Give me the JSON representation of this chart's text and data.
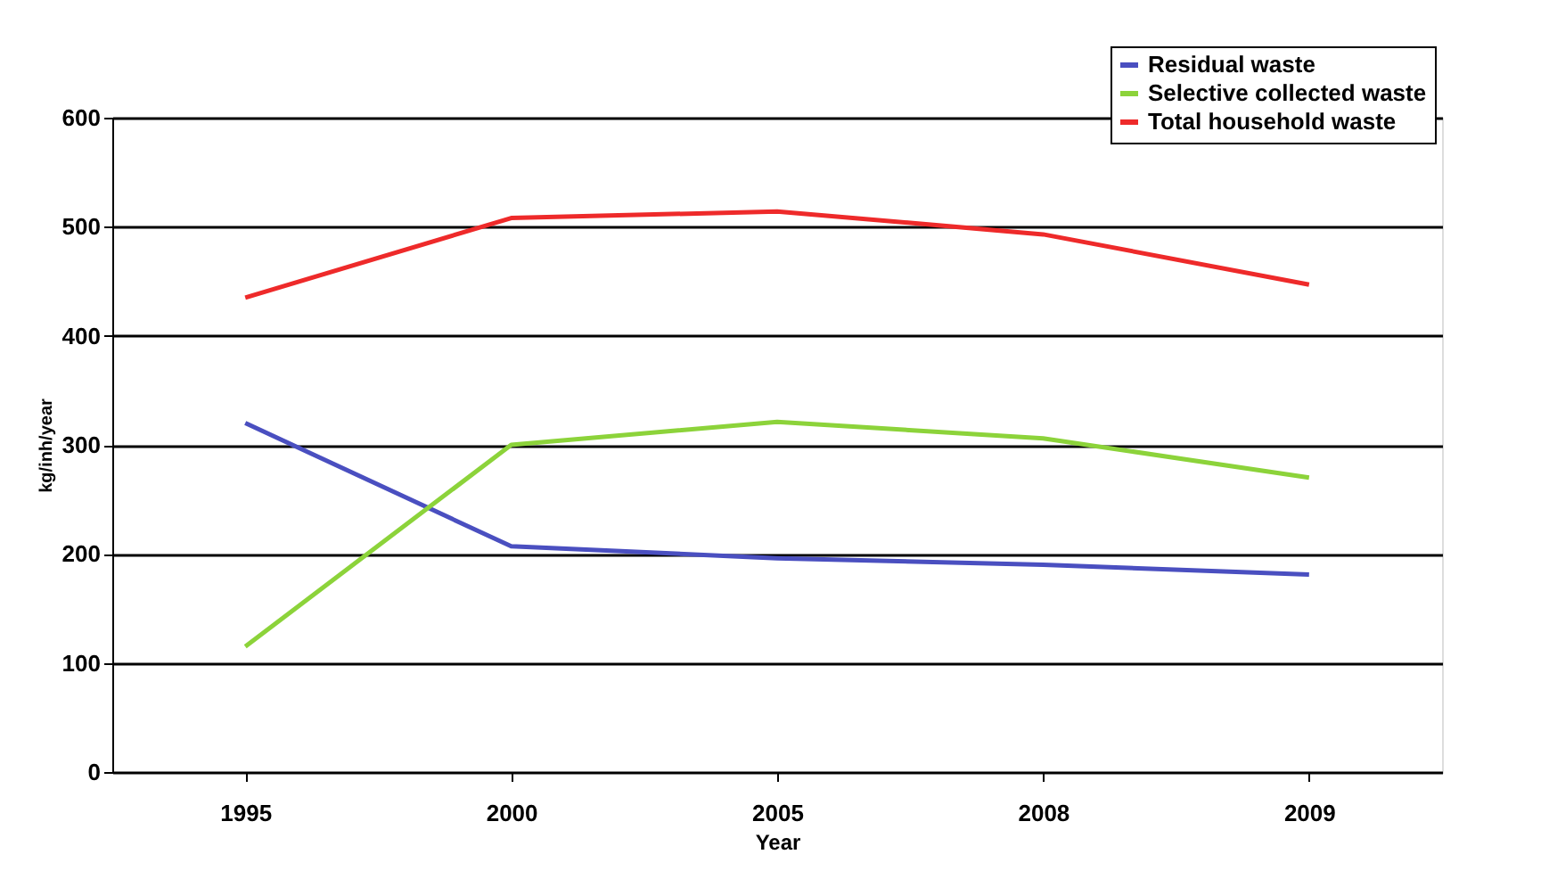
{
  "chart_data": {
    "type": "line",
    "xlabel": "Year",
    "ylabel": "kg/inh/year",
    "categories": [
      "1995",
      "2000",
      "2005",
      "2008",
      "2009"
    ],
    "series": [
      {
        "name": "Residual waste",
        "color": "#4a4fc0",
        "values": [
          320,
          207,
          196,
          190,
          181
        ]
      },
      {
        "name": "Selective collected waste",
        "color": "#8cd33a",
        "values": [
          115,
          300,
          321,
          306,
          270
        ]
      },
      {
        "name": "Total household waste",
        "color": "#ee2a2a",
        "values": [
          435,
          508,
          514,
          493,
          447
        ]
      }
    ],
    "ylim": [
      0,
      600
    ],
    "yticks": [
      0,
      100,
      200,
      300,
      400,
      500,
      600
    ],
    "grid": "y",
    "legend": "top right",
    "marker": "none",
    "line_style": "solid"
  }
}
